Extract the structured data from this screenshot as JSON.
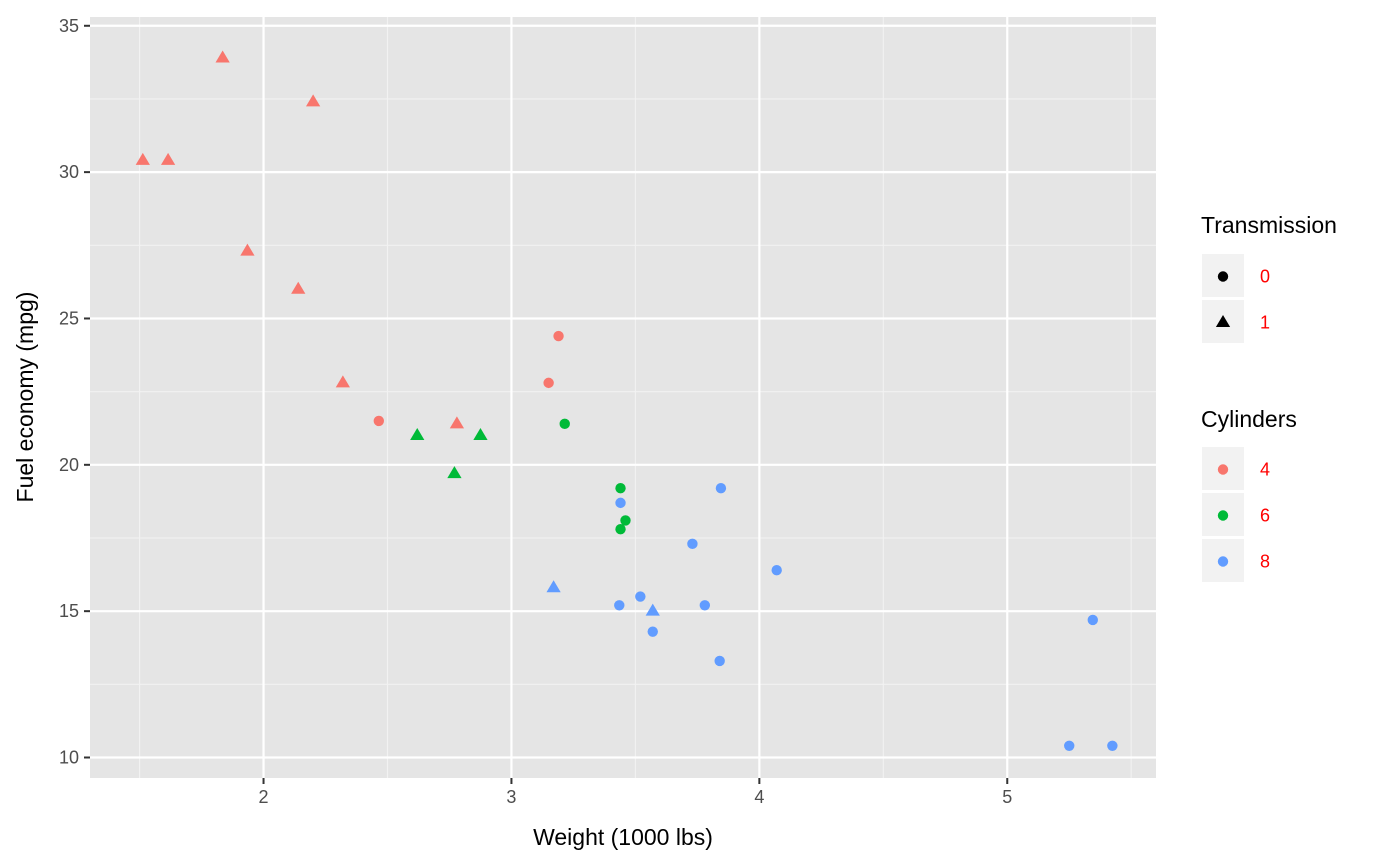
{
  "chart_data": {
    "type": "scatter",
    "xlabel": "Weight (1000 lbs)",
    "ylabel": "Fuel economy (mpg)",
    "xlim": [
      1.3,
      5.6
    ],
    "ylim": [
      9.3,
      35.3
    ],
    "x_ticks": [
      2,
      3,
      4,
      5
    ],
    "y_ticks": [
      10,
      15,
      20,
      25,
      30,
      35
    ],
    "x_tick_labels": [
      "2",
      "3",
      "4",
      "5"
    ],
    "y_tick_labels": [
      "10",
      "15",
      "20",
      "25",
      "30",
      "35"
    ],
    "grid": true,
    "background": "#e5e5e5",
    "legend_placement": "right",
    "legends": {
      "shape": {
        "title": "Transmission",
        "entries": [
          {
            "label": "0",
            "shape": "circle"
          },
          {
            "label": "1",
            "shape": "triangle"
          }
        ]
      },
      "color": {
        "title": "Cylinders",
        "entries": [
          {
            "label": "4",
            "color": "#f8766d"
          },
          {
            "label": "6",
            "color": "#00ba38"
          },
          {
            "label": "8",
            "color": "#619cff"
          }
        ]
      }
    },
    "legend_label_color": "#ff0000",
    "points": [
      {
        "x": 2.62,
        "y": 21.0,
        "cyl": "6",
        "am": "1"
      },
      {
        "x": 2.875,
        "y": 21.0,
        "cyl": "6",
        "am": "1"
      },
      {
        "x": 2.32,
        "y": 22.8,
        "cyl": "4",
        "am": "1"
      },
      {
        "x": 3.215,
        "y": 21.4,
        "cyl": "6",
        "am": "0"
      },
      {
        "x": 3.44,
        "y": 18.7,
        "cyl": "8",
        "am": "0"
      },
      {
        "x": 3.46,
        "y": 18.1,
        "cyl": "6",
        "am": "0"
      },
      {
        "x": 3.57,
        "y": 14.3,
        "cyl": "8",
        "am": "0"
      },
      {
        "x": 3.19,
        "y": 24.4,
        "cyl": "4",
        "am": "0"
      },
      {
        "x": 3.15,
        "y": 22.8,
        "cyl": "4",
        "am": "0"
      },
      {
        "x": 3.44,
        "y": 19.2,
        "cyl": "6",
        "am": "0"
      },
      {
        "x": 3.44,
        "y": 17.8,
        "cyl": "6",
        "am": "0"
      },
      {
        "x": 4.07,
        "y": 16.4,
        "cyl": "8",
        "am": "0"
      },
      {
        "x": 3.73,
        "y": 17.3,
        "cyl": "8",
        "am": "0"
      },
      {
        "x": 3.78,
        "y": 15.2,
        "cyl": "8",
        "am": "0"
      },
      {
        "x": 5.25,
        "y": 10.4,
        "cyl": "8",
        "am": "0"
      },
      {
        "x": 5.424,
        "y": 10.4,
        "cyl": "8",
        "am": "0"
      },
      {
        "x": 5.345,
        "y": 14.7,
        "cyl": "8",
        "am": "0"
      },
      {
        "x": 2.2,
        "y": 32.4,
        "cyl": "4",
        "am": "1"
      },
      {
        "x": 1.615,
        "y": 30.4,
        "cyl": "4",
        "am": "1"
      },
      {
        "x": 1.835,
        "y": 33.9,
        "cyl": "4",
        "am": "1"
      },
      {
        "x": 2.465,
        "y": 21.5,
        "cyl": "4",
        "am": "0"
      },
      {
        "x": 3.52,
        "y": 15.5,
        "cyl": "8",
        "am": "0"
      },
      {
        "x": 3.435,
        "y": 15.2,
        "cyl": "8",
        "am": "0"
      },
      {
        "x": 3.84,
        "y": 13.3,
        "cyl": "8",
        "am": "0"
      },
      {
        "x": 3.845,
        "y": 19.2,
        "cyl": "8",
        "am": "0"
      },
      {
        "x": 1.935,
        "y": 27.3,
        "cyl": "4",
        "am": "1"
      },
      {
        "x": 2.14,
        "y": 26.0,
        "cyl": "4",
        "am": "1"
      },
      {
        "x": 1.513,
        "y": 30.4,
        "cyl": "4",
        "am": "1"
      },
      {
        "x": 3.17,
        "y": 15.8,
        "cyl": "8",
        "am": "1"
      },
      {
        "x": 2.77,
        "y": 19.7,
        "cyl": "6",
        "am": "1"
      },
      {
        "x": 3.57,
        "y": 15.0,
        "cyl": "8",
        "am": "1"
      },
      {
        "x": 2.78,
        "y": 21.4,
        "cyl": "4",
        "am": "1"
      }
    ]
  }
}
